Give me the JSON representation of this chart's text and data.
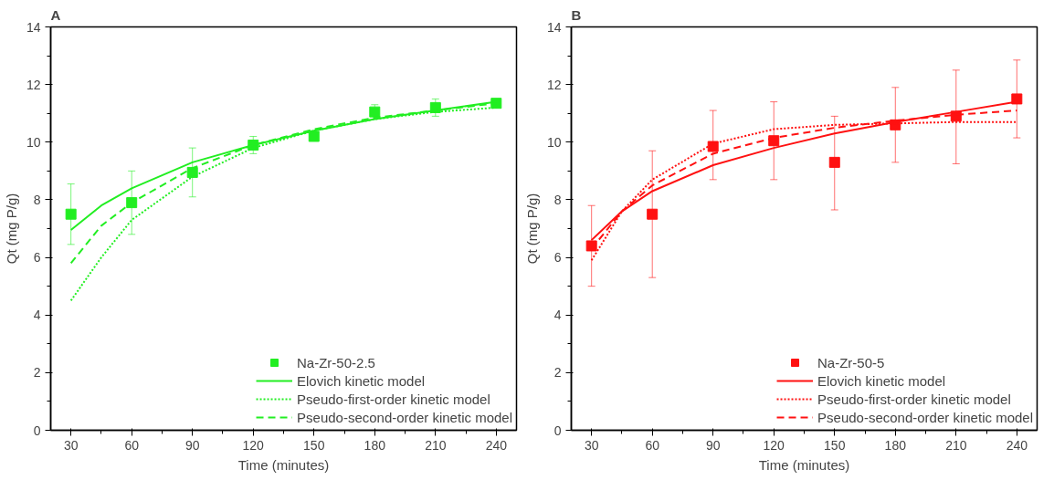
{
  "chart_data": [
    {
      "type": "scatter",
      "title": "A",
      "xlabel": "Time (minutes)",
      "ylabel": "Qt (mg P/g)",
      "xlim": [
        20,
        250
      ],
      "xticks": [
        30,
        {
          "value": 45,
          "label": null
        },
        60,
        {
          "value": 75,
          "label": null
        },
        90,
        {
          "value": 105,
          "label": null
        },
        120,
        {
          "value": 135,
          "label": null
        },
        150,
        {
          "value": 165,
          "label": null
        },
        180,
        {
          "value": 195,
          "label": null
        },
        210,
        {
          "value": 225,
          "label": null
        },
        240
      ],
      "ylim": [
        0,
        14
      ],
      "yticks": [
        0,
        {
          "value": 1,
          "label": null
        },
        2,
        {
          "value": 3,
          "label": null
        },
        4,
        {
          "value": 5,
          "label": null
        },
        6,
        {
          "value": 7,
          "label": null
        },
        8,
        {
          "value": 9,
          "label": null
        },
        10,
        {
          "value": 11,
          "label": null
        },
        12,
        {
          "value": 13,
          "label": null
        },
        14
      ],
      "grid": false,
      "legend": "bottom right",
      "series": [
        {
          "name": "Na-Zr-50-2.5",
          "marker": "square",
          "color": "#22ee22",
          "x": [
            30,
            60,
            90,
            120,
            150,
            180,
            210,
            240
          ],
          "values": [
            7.5,
            7.9,
            8.95,
            9.9,
            10.2,
            11.05,
            11.2,
            11.35
          ],
          "errors": [
            1.05,
            1.1,
            0.85,
            0.3,
            null,
            0.25,
            0.3,
            null
          ]
        },
        {
          "name": "Elovich kinetic model",
          "type": "line",
          "line_style": "solid",
          "color": "#22ee22",
          "x": [
            30,
            45,
            60,
            90,
            120,
            150,
            180,
            210,
            240
          ],
          "values": [
            6.95,
            7.8,
            8.4,
            9.3,
            9.9,
            10.4,
            10.8,
            11.1,
            11.4
          ]
        },
        {
          "name": "Pseudo-first-order kinetic model",
          "type": "line",
          "line_style": "dotted",
          "color": "#22ee22",
          "x": [
            30,
            45,
            60,
            90,
            120,
            150,
            180,
            210,
            240
          ],
          "values": [
            4.5,
            6.0,
            7.3,
            8.8,
            9.8,
            10.4,
            10.8,
            11.05,
            11.2
          ]
        },
        {
          "name": "Pseudo-second-order kinetic model",
          "type": "line",
          "line_style": "dashed",
          "color": "#22ee22",
          "x": [
            30,
            45,
            60,
            90,
            120,
            150,
            180,
            210,
            240
          ],
          "values": [
            5.8,
            7.1,
            7.9,
            9.1,
            9.9,
            10.45,
            10.85,
            11.1,
            11.35
          ]
        }
      ]
    },
    {
      "type": "scatter",
      "title": "B",
      "xlabel": "Time (minutes)",
      "ylabel": "Qt (mg P/g)",
      "xlim": [
        20,
        250
      ],
      "xticks": [
        30,
        {
          "value": 45,
          "label": null
        },
        60,
        {
          "value": 75,
          "label": null
        },
        90,
        {
          "value": 105,
          "label": null
        },
        120,
        {
          "value": 135,
          "label": null
        },
        150,
        {
          "value": 165,
          "label": null
        },
        180,
        {
          "value": 195,
          "label": null
        },
        210,
        {
          "value": 225,
          "label": null
        },
        240
      ],
      "ylim": [
        0,
        14
      ],
      "yticks": [
        0,
        {
          "value": 1,
          "label": null
        },
        2,
        {
          "value": 3,
          "label": null
        },
        4,
        {
          "value": 5,
          "label": null
        },
        6,
        {
          "value": 7,
          "label": null
        },
        8,
        {
          "value": 9,
          "label": null
        },
        10,
        {
          "value": 11,
          "label": null
        },
        12,
        {
          "value": 13,
          "label": null
        },
        14
      ],
      "grid": false,
      "legend": "bottom right",
      "series": [
        {
          "name": "Na-Zr-50-5",
          "marker": "square",
          "color": "#ff1111",
          "x": [
            30,
            60,
            90,
            120,
            150,
            180,
            210,
            240
          ],
          "values": [
            6.4,
            7.5,
            9.85,
            10.05,
            9.3,
            10.6,
            10.9,
            11.5
          ],
          "errors": [
            [
              5.0,
              7.8
            ],
            [
              5.3,
              9.7
            ],
            [
              8.7,
              11.1
            ],
            [
              8.7,
              11.4
            ],
            [
              7.65,
              10.9
            ],
            [
              9.3,
              11.9
            ],
            [
              9.25,
              12.5
            ],
            [
              10.15,
              12.85
            ]
          ]
        },
        {
          "name": "Elovich kinetic model",
          "type": "line",
          "line_style": "solid",
          "color": "#ff1111",
          "x": [
            30,
            45,
            60,
            90,
            120,
            150,
            180,
            210,
            240
          ],
          "values": [
            6.6,
            7.6,
            8.3,
            9.2,
            9.8,
            10.3,
            10.7,
            11.05,
            11.4
          ]
        },
        {
          "name": "Pseudo-first-order kinetic model",
          "type": "line",
          "line_style": "dotted",
          "color": "#ff1111",
          "x": [
            30,
            45,
            60,
            90,
            120,
            150,
            180,
            210,
            240
          ],
          "values": [
            5.9,
            7.6,
            8.7,
            9.95,
            10.45,
            10.6,
            10.65,
            10.7,
            10.7
          ]
        },
        {
          "name": "Pseudo-second-order kinetic model",
          "type": "line",
          "line_style": "dashed",
          "color": "#ff1111",
          "x": [
            30,
            45,
            60,
            90,
            120,
            150,
            180,
            210,
            240
          ],
          "values": [
            6.3,
            7.6,
            8.5,
            9.6,
            10.15,
            10.5,
            10.75,
            10.95,
            11.1
          ]
        }
      ]
    }
  ]
}
